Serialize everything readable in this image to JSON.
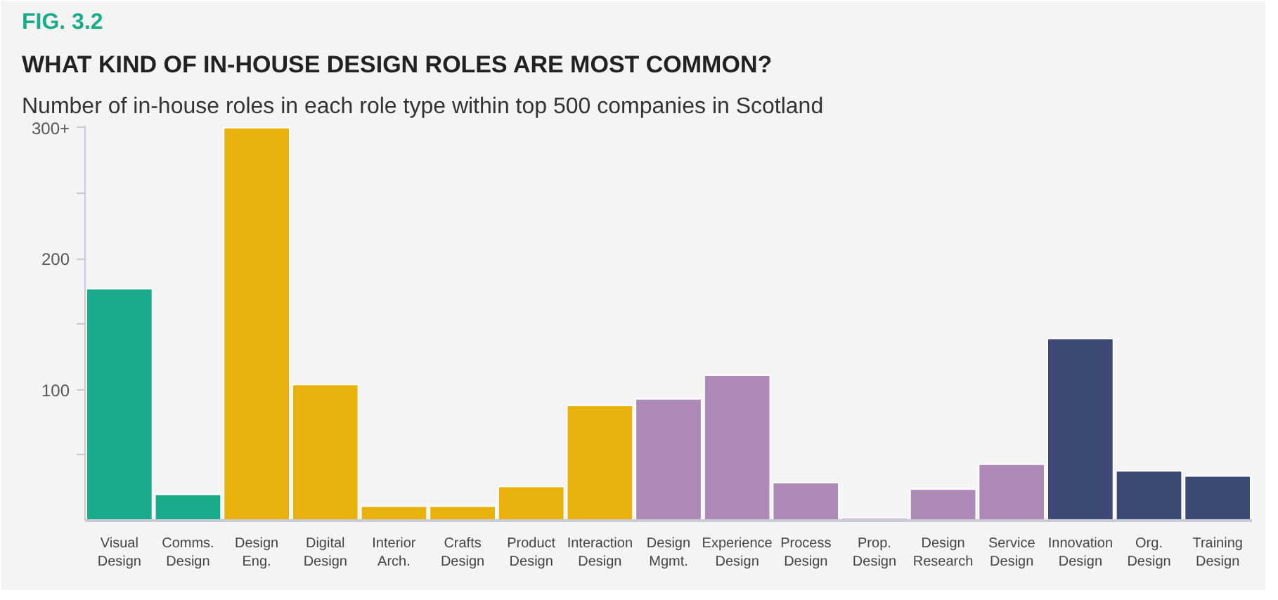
{
  "chart_data": {
    "type": "bar",
    "title": "WHAT KIND OF IN-HOUSE DESIGN ROLES ARE MOST COMMON?",
    "subtitle": "Number of in-house roles in each role type within top 500 companies in Scotland",
    "annotations": [
      "FIG. 3.2"
    ],
    "categories": [
      "Visual\nDesign",
      "Comms.\nDesign",
      "Design\nEng.",
      "Digital\nDesign",
      "Interior\nArch.",
      "Crafts\nDesign",
      "Product\nDesign",
      "Interaction\nDesign",
      "Design\nMgmt.",
      "Experience\nDesign",
      "Process\nDesign",
      "Prop.\nDesign",
      "Design\nResearch",
      "Service\nDesign",
      "Innovation\nDesign",
      "Org.\nDesign",
      "Training\nDesign"
    ],
    "values": [
      177,
      20,
      300,
      104,
      11,
      11,
      26,
      88,
      93,
      111,
      29,
      2,
      24,
      43,
      139,
      38,
      34
    ],
    "colors": [
      "#1aab8a",
      "#1aab8a",
      "#e8b10c",
      "#e8b10c",
      "#e8b10c",
      "#e8b10c",
      "#e8b10c",
      "#e8b10c",
      "#ad89b5",
      "#ad89b5",
      "#ad89b5",
      "#ad89b5",
      "#ad89b5",
      "#ad89b5",
      "#3d4a75",
      "#3d4a75",
      "#3d4a75"
    ],
    "ylim": [
      0,
      300
    ],
    "yticks": [
      {
        "value": 50,
        "label": null
      },
      100,
      {
        "value": 150,
        "label": null
      },
      200,
      {
        "value": 250,
        "label": null
      },
      {
        "value": 300,
        "label": "300+"
      }
    ],
    "grid": false
  }
}
